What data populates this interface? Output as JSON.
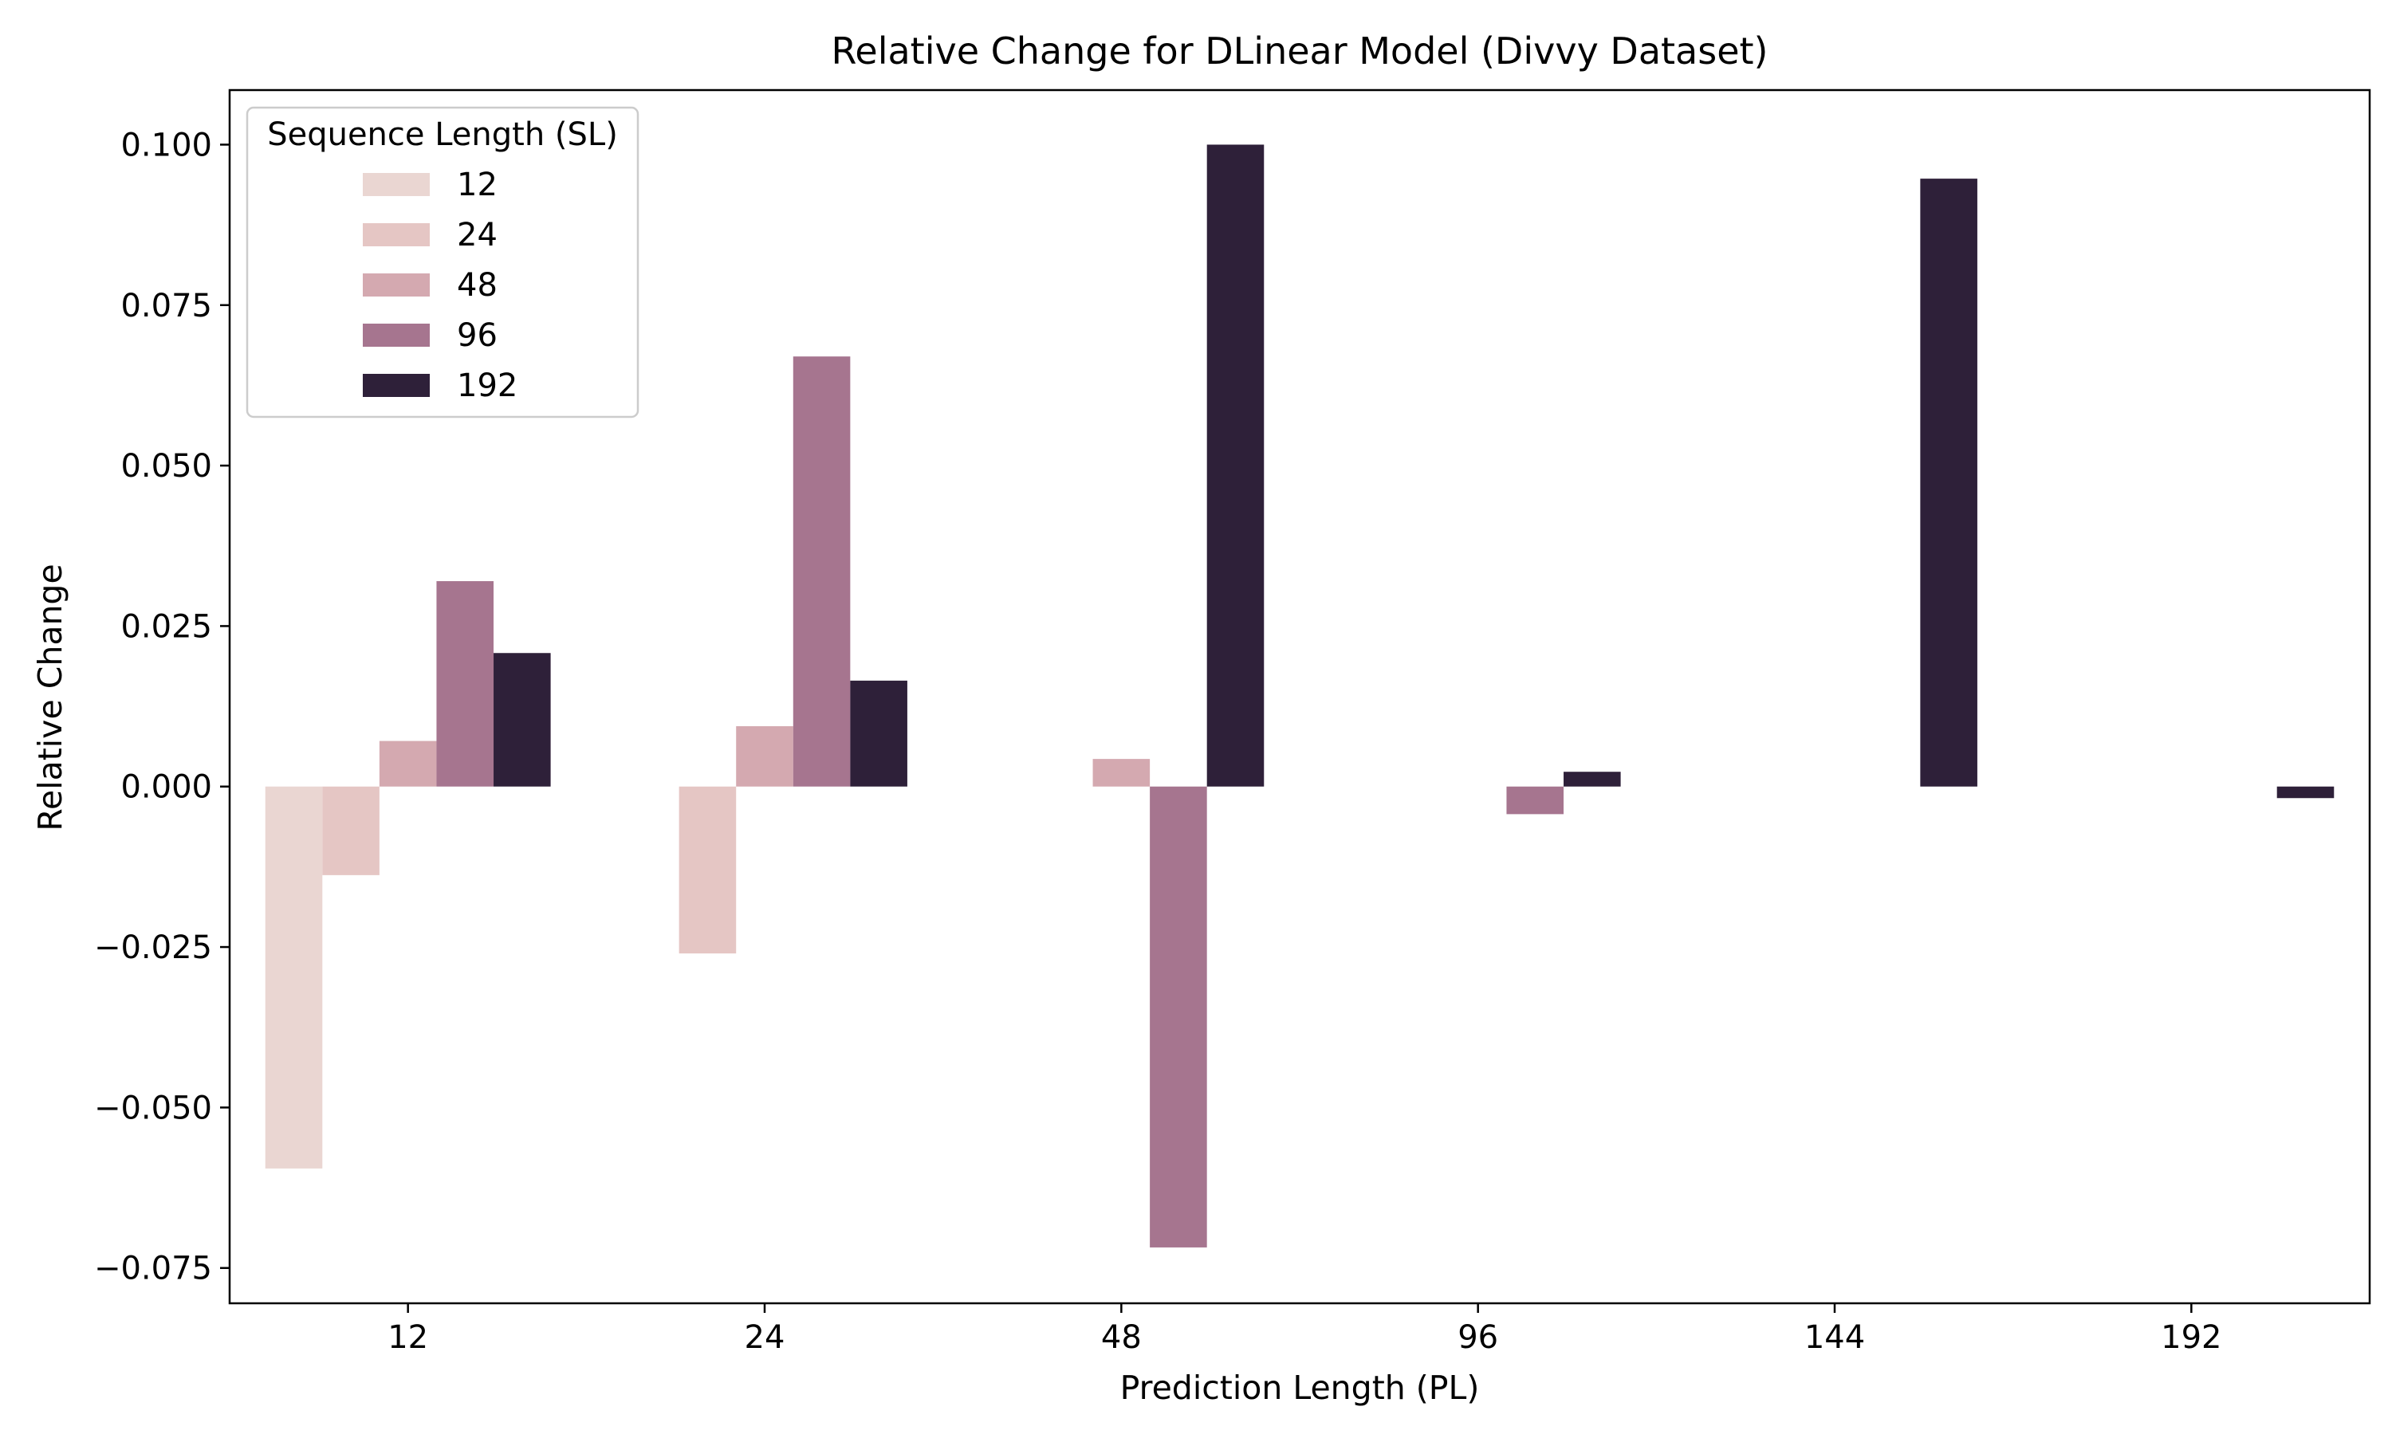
{
  "chart_data": {
    "type": "bar",
    "title": "Relative Change for DLinear Model (Divvy Dataset)",
    "xlabel": "Prediction Length (PL)",
    "ylabel": "Relative Change",
    "categories": [
      "12",
      "24",
      "48",
      "96",
      "144",
      "192"
    ],
    "ylim": [
      -0.0805,
      0.1085
    ],
    "yticks": [
      -0.075,
      -0.05,
      -0.025,
      0.0,
      0.025,
      0.05,
      0.075,
      0.1
    ],
    "ytick_labels": [
      "−0.075",
      "−0.050",
      "−0.025",
      "0.000",
      "0.025",
      "0.050",
      "0.075",
      "0.100"
    ],
    "grid": false,
    "legend": {
      "title": "Sequence Length (SL)",
      "position": "top-left"
    },
    "series": [
      {
        "name": "12",
        "color": "#ead6d2",
        "values": [
          -0.0595,
          null,
          null,
          null,
          null,
          null
        ]
      },
      {
        "name": "24",
        "color": "#e5c6c4",
        "values": [
          -0.0138,
          -0.026,
          null,
          null,
          null,
          null
        ]
      },
      {
        "name": "48",
        "color": "#d4a9b0",
        "values": [
          0.0071,
          0.0094,
          0.0043,
          null,
          null,
          null
        ]
      },
      {
        "name": "96",
        "color": "#a6758f",
        "values": [
          0.032,
          0.067,
          -0.0718,
          -0.0043,
          null,
          null
        ]
      },
      {
        "name": "192",
        "color": "#2e2039",
        "values": [
          0.0208,
          0.0165,
          0.1,
          0.0023,
          0.0947,
          -0.0018
        ]
      }
    ]
  }
}
